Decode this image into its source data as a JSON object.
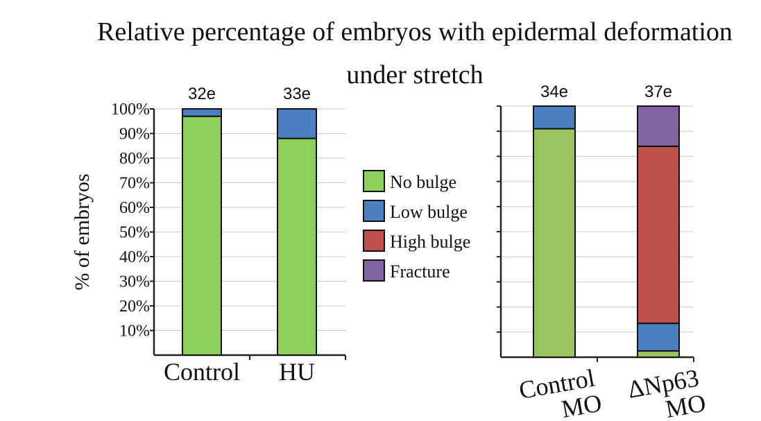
{
  "title_line1": "Relative percentage of embryos with epidermal deformation",
  "title_line2": "under stretch",
  "colors": {
    "no_bulge": "#8fd05a",
    "no_bulge_mo": "#9bc35f",
    "low_bulge": "#4a7fc1",
    "high_bulge": "#c0504d",
    "fracture": "#8064a2"
  },
  "legend": [
    "No bulge",
    "Low bulge",
    "High bulge",
    "Fracture"
  ],
  "chart_data": [
    {
      "type": "bar",
      "stacked": true,
      "ylabel": "% of embryos",
      "ylim": [
        0,
        100
      ],
      "yticks": [
        "10%",
        "20%",
        "30%",
        "40%",
        "50%",
        "60%",
        "70%",
        "80%",
        "90%",
        "100%"
      ],
      "grid": true,
      "categories": [
        "Control",
        "HU"
      ],
      "n_labels": [
        "32e",
        "33e"
      ],
      "series": [
        {
          "name": "No bulge",
          "values": [
            97,
            88
          ]
        },
        {
          "name": "Low bulge",
          "values": [
            3,
            12
          ]
        },
        {
          "name": "High bulge",
          "values": [
            0,
            0
          ]
        },
        {
          "name": "Fracture",
          "values": [
            0,
            0
          ]
        }
      ]
    },
    {
      "type": "bar",
      "stacked": true,
      "ylim": [
        0,
        100
      ],
      "grid": true,
      "categories": [
        [
          "Control",
          "MO"
        ],
        [
          "ΔNp63",
          "MO"
        ]
      ],
      "n_labels": [
        "34e",
        "37e"
      ],
      "series": [
        {
          "name": "No bulge",
          "values": [
            91,
            2.5
          ]
        },
        {
          "name": "Low bulge",
          "values": [
            9,
            11
          ]
        },
        {
          "name": "High bulge",
          "values": [
            0,
            70.5
          ]
        },
        {
          "name": "Fracture",
          "values": [
            0,
            16
          ]
        }
      ]
    }
  ]
}
